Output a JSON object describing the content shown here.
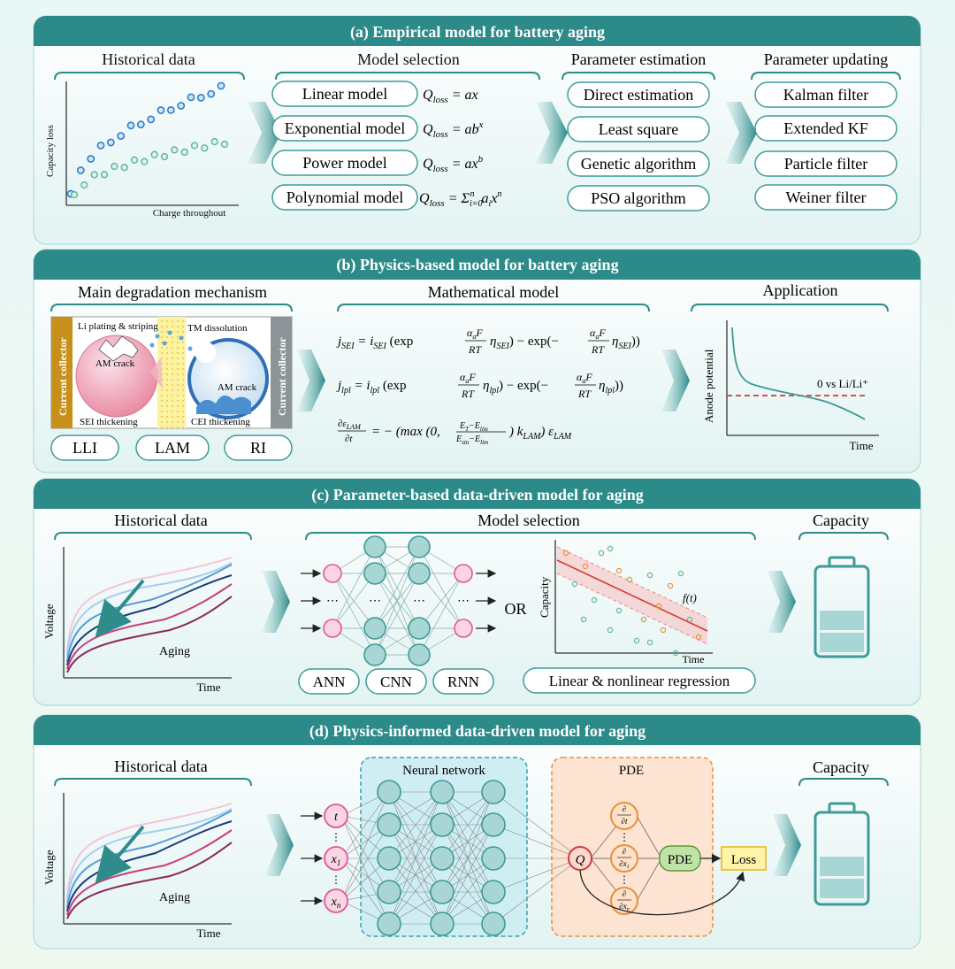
{
  "panels": {
    "a": {
      "title": "(a) Empirical model for battery aging",
      "historical_title": "Historical data",
      "y_label": "Capacity loss",
      "x_label": "Charge throughout",
      "model_title": "Model selection",
      "models": [
        {
          "label": "Linear model",
          "formula": "Q_loss = ax"
        },
        {
          "label": "Exponential model",
          "formula": "Q_loss = ab^x"
        },
        {
          "label": "Power model",
          "formula": "Q_loss = ax^b"
        },
        {
          "label": "Polynomial model",
          "formula": "Q_loss = Σ_{i=0}^{n} a_i x^n"
        }
      ],
      "estimation_title": "Parameter estimation",
      "estimation": [
        "Direct estimation",
        "Least square",
        "Genetic algorithm",
        "PSO algorithm"
      ],
      "updating_title": "Parameter updating",
      "updating": [
        "Kalman filter",
        "Extended KF",
        "Particle filter",
        "Weiner filter"
      ]
    },
    "b": {
      "title": "(b) Physics-based model for battery aging",
      "mechanism_title": "Main degradation mechanism",
      "current_collector": "Current collector",
      "li_plating": "Li plating & striping",
      "am_crack": "AM crack",
      "tm_dissolution": "TM dissolution",
      "sei_thickening": "SEI thickening",
      "cei_thickening": "CEI thickening",
      "tags": [
        "LLI",
        "LAM",
        "RI"
      ],
      "math_title": "Mathematical model",
      "application_title": "Application",
      "anode_label": "Anode potential",
      "time_label": "Time",
      "ref_line": "0 vs Li/Li⁺"
    },
    "c": {
      "title": "(c) Parameter-based data-driven model for aging",
      "historical_title": "Historical data",
      "voltage_label": "Voltage",
      "aging_label": "Aging",
      "time_label": "Time",
      "model_title": "Model selection",
      "or_label": "OR",
      "capacity_label": "Capacity",
      "ft_label": "f(t)",
      "nets": [
        "ANN",
        "CNN",
        "RNN"
      ],
      "regression": "Linear & nonlinear regression",
      "capacity_title": "Capacity"
    },
    "d": {
      "title": "(d) Physics-informed data-driven model for aging",
      "historical_title": "Historical data",
      "voltage_label": "Voltage",
      "aging_label": "Aging",
      "time_label": "Time",
      "nn_title": "Neural network",
      "pde_title": "PDE",
      "pde_node": "PDE",
      "loss_node": "Loss",
      "output_node": "Q",
      "capacity_title": "Capacity"
    }
  },
  "colors": {
    "header": "#2c8a88",
    "teal": "#3d9b98",
    "blue_dot": "#2f7ec9",
    "green_dot": "#5fb89a",
    "pink_node": "#e2559c",
    "orange_node": "#e8903a",
    "red": "#d23b3b"
  }
}
